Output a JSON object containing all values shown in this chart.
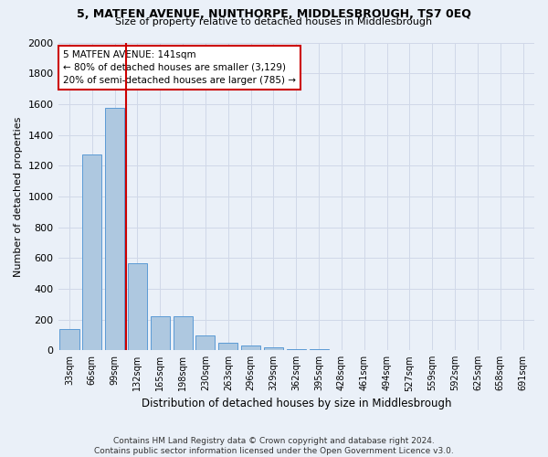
{
  "title": "5, MATFEN AVENUE, NUNTHORPE, MIDDLESBROUGH, TS7 0EQ",
  "subtitle": "Size of property relative to detached houses in Middlesbrough",
  "xlabel": "Distribution of detached houses by size in Middlesbrough",
  "ylabel": "Number of detached properties",
  "footer_line1": "Contains HM Land Registry data © Crown copyright and database right 2024.",
  "footer_line2": "Contains public sector information licensed under the Open Government Licence v3.0.",
  "bar_labels": [
    "33sqm",
    "66sqm",
    "99sqm",
    "132sqm",
    "165sqm",
    "198sqm",
    "230sqm",
    "263sqm",
    "296sqm",
    "329sqm",
    "362sqm",
    "395sqm",
    "428sqm",
    "461sqm",
    "494sqm",
    "527sqm",
    "559sqm",
    "592sqm",
    "625sqm",
    "658sqm",
    "691sqm"
  ],
  "bar_values": [
    140,
    1275,
    1575,
    565,
    220,
    220,
    95,
    50,
    28,
    18,
    10,
    5,
    0,
    0,
    0,
    0,
    0,
    0,
    0,
    0,
    0
  ],
  "bar_color": "#aec8e0",
  "bar_edge_color": "#5b9bd5",
  "ylim": [
    0,
    2000
  ],
  "yticks": [
    0,
    200,
    400,
    600,
    800,
    1000,
    1200,
    1400,
    1600,
    1800,
    2000
  ],
  "vline_pos": 2.5,
  "vline_color": "#cc0000",
  "annotation_line1": "5 MATFEN AVENUE: 141sqm",
  "annotation_line2": "← 80% of detached houses are smaller (3,129)",
  "annotation_line3": "20% of semi-detached houses are larger (785) →",
  "annotation_box_color": "#ffffff",
  "annotation_box_edge_color": "#cc0000",
  "grid_color": "#d0d8e8",
  "bg_color": "#eaf0f8"
}
